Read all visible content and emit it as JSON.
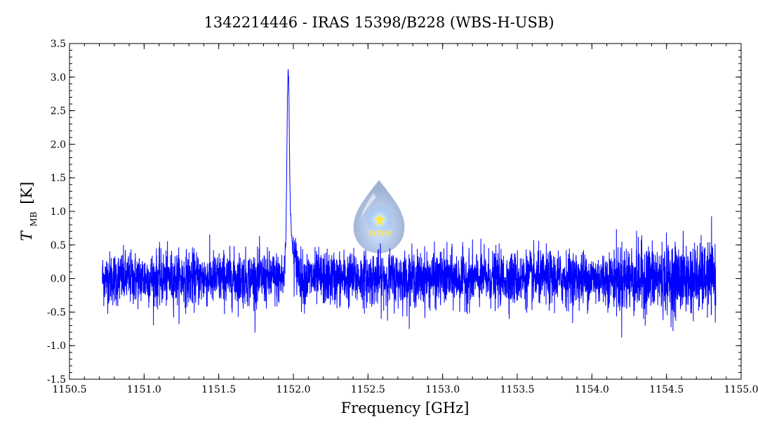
{
  "chart_data": {
    "type": "line",
    "title": "1342214446 - IRAS 15398/B228 (WBS-H-USB)",
    "xlabel": "Frequency [GHz]",
    "ylabel_main": "T",
    "ylabel_sub": "MB",
    "ylabel_unit": "[K]",
    "xlim": [
      1150.5,
      1155.0
    ],
    "ylim": [
      -1.5,
      3.5
    ],
    "x_ticks": [
      1150.5,
      1151.0,
      1151.5,
      1152.0,
      1152.5,
      1153.0,
      1153.5,
      1154.0,
      1154.5,
      1155.0
    ],
    "x_tick_labels": [
      "1150.5",
      "1151.0",
      "1151.5",
      "1152.0",
      "1152.5",
      "1153.0",
      "1153.5",
      "1154.0",
      "1154.5",
      "1155.0"
    ],
    "y_ticks": [
      -1.5,
      -1.0,
      -0.5,
      0.0,
      0.5,
      1.0,
      1.5,
      2.0,
      2.5,
      3.0,
      3.5
    ],
    "y_tick_labels": [
      "-1.5",
      "-1.0",
      "-0.5",
      "0.0",
      "0.5",
      "1.0",
      "1.5",
      "2.0",
      "2.5",
      "3.0",
      "3.5"
    ],
    "grid": false,
    "series": [
      {
        "color": "#0000ff",
        "freq_range": [
          1150.72,
          1154.83
        ],
        "noise_rms": 0.2,
        "peak": {
          "x": [
            1151.94,
            1151.95,
            1151.96,
            1151.965,
            1151.97,
            1151.975,
            1151.98,
            1151.99,
            1152.0,
            1152.02,
            1152.05
          ],
          "y": [
            0.1,
            0.6,
            2.6,
            3.15,
            2.8,
            1.7,
            1.0,
            0.6,
            0.35,
            0.2,
            0.05
          ]
        }
      }
    ],
    "watermark": {
      "text": "WISH",
      "icon": "wish-droplet-logo"
    }
  }
}
